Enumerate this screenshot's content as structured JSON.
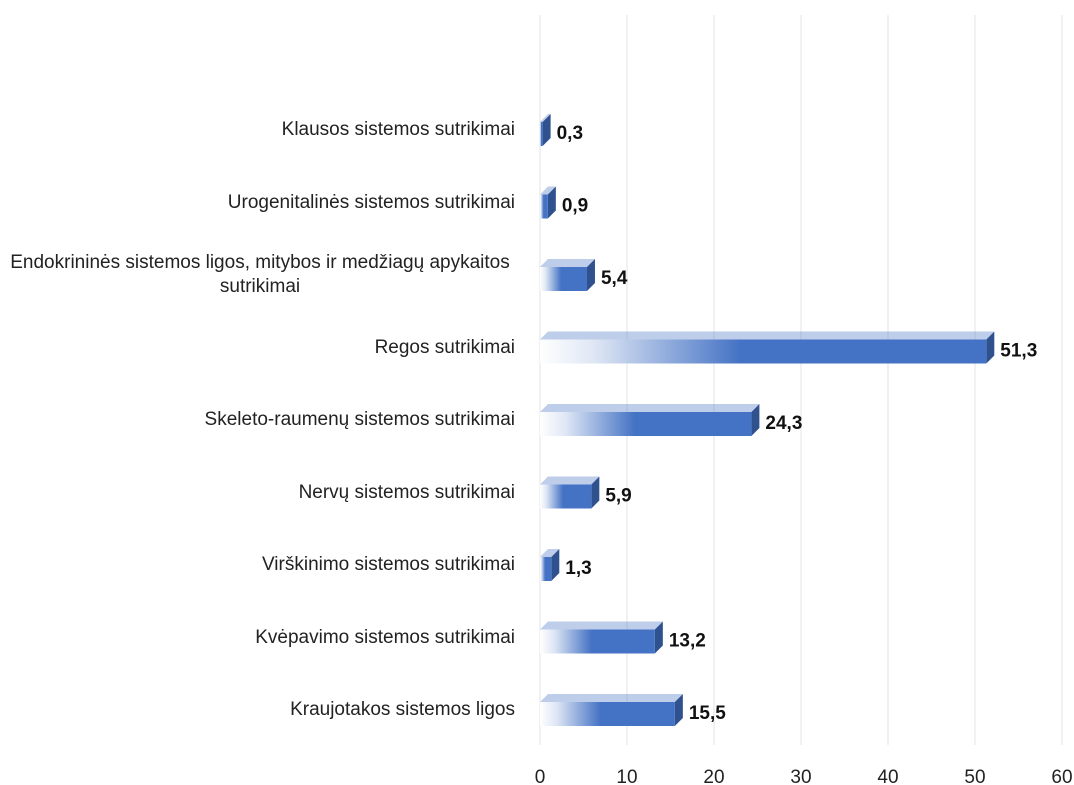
{
  "chart_data": {
    "type": "bar",
    "orientation": "horizontal",
    "categories": [
      "Klausos sistemos sutrikimai",
      "Urogenitalinės sistemos sutrikimai",
      "Endokrininės sistemos ligos, mitybos ir medžiagų apykaitos sutrikimai",
      "Regos sutrikimai",
      "Skeleto-raumenų sistemos sutrikimai",
      "Nervų sistemos sutrikimai",
      "Virškinimo sistemos sutrikimai",
      "Kvėpavimo sistemos sutrikimai",
      "Kraujotakos sistemos ligos"
    ],
    "values": [
      0.3,
      0.9,
      5.4,
      51.3,
      24.3,
      5.9,
      1.3,
      13.2,
      15.5
    ],
    "value_labels": [
      "0,3",
      "0,9",
      "5,4",
      "51,3",
      "24,3",
      "5,9",
      "1,3",
      "13,2",
      "15,5"
    ],
    "color": "#4472c4",
    "xlim": [
      0,
      60
    ],
    "xticks": [
      0,
      10,
      20,
      30,
      40,
      50,
      60
    ],
    "grid": true
  }
}
